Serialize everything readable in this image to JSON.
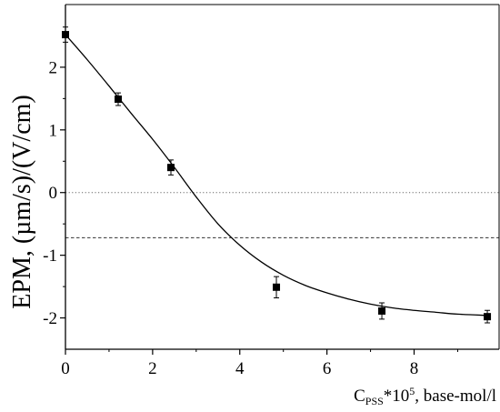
{
  "chart_data": {
    "type": "scatter",
    "ylabel": "EPM, (µm/s)/(V/cm)",
    "xlabel": {
      "base": "C",
      "subscript": "PSS",
      "middle": "*10",
      "superscript": "5",
      "suffix": ", base-mol/l"
    },
    "xlim": [
      0,
      9.95
    ],
    "ylim": [
      -2.5,
      3.0
    ],
    "xticks": [
      0,
      2,
      4,
      6,
      8
    ],
    "xtick_labels": [
      "0",
      "2",
      "4",
      "6",
      "8"
    ],
    "yticks": [
      -2,
      -1,
      0,
      1,
      2
    ],
    "ytick_labels": [
      "-2",
      "-1",
      "0",
      "1",
      "2"
    ],
    "grid": false,
    "series": [
      {
        "kind": "scatter",
        "marker": "square",
        "color": "#000000",
        "x": [
          0,
          1.21,
          2.42,
          4.84,
          7.26,
          9.68
        ],
        "y": [
          2.52,
          1.49,
          0.4,
          -1.51,
          -1.89,
          -1.98
        ],
        "yerr": [
          0.12,
          0.1,
          0.12,
          0.17,
          0.13,
          0.1
        ]
      },
      {
        "kind": "line",
        "color": "#000000",
        "x": [
          0,
          0.5,
          1,
          1.5,
          2,
          2.5,
          3,
          3.5,
          4,
          4.5,
          5,
          5.5,
          6,
          6.5,
          7,
          7.5,
          8,
          8.5,
          9,
          9.68
        ],
        "y": [
          2.52,
          2.12,
          1.7,
          1.27,
          0.85,
          0.4,
          -0.07,
          -0.5,
          -0.84,
          -1.11,
          -1.32,
          -1.48,
          -1.6,
          -1.7,
          -1.78,
          -1.84,
          -1.88,
          -1.91,
          -1.94,
          -1.96
        ]
      }
    ],
    "reference_lines": [
      {
        "y": 0,
        "style": "dotted",
        "color": "#666666"
      },
      {
        "y": -0.72,
        "style": "dashed",
        "color": "#333333"
      }
    ]
  }
}
